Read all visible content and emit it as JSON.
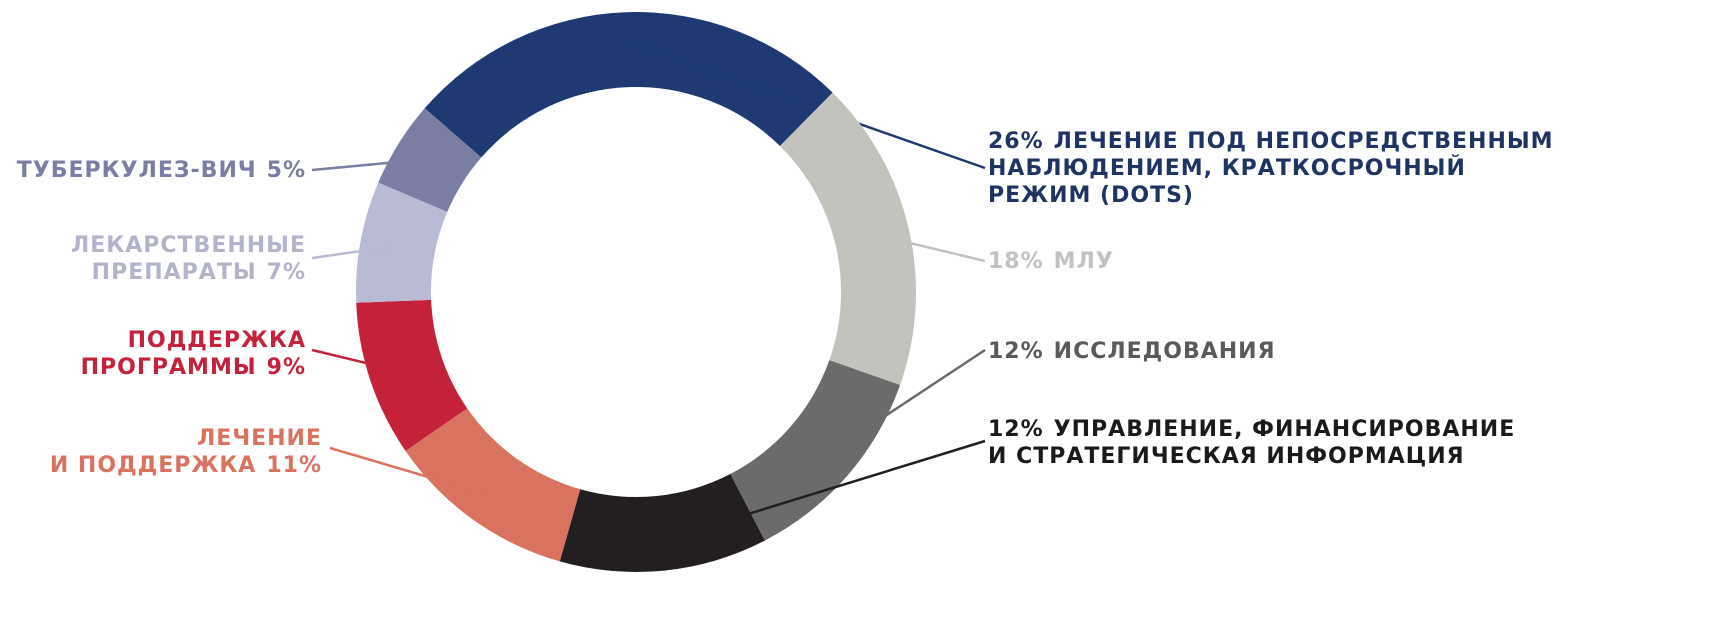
{
  "chart_data": {
    "type": "donut",
    "categories": [
      "ЛЕЧЕНИЕ ПОД НЕПОСРЕДСТВЕННЫМ\nНАБЛЮДЕНИЕМ, КРАТКОСРОЧНЫЙ\nРЕЖИМ (DOTS)",
      "МЛУ",
      "ИССЛЕДОВАНИЯ",
      "УПРАВЛЕНИЕ, ФИНАНСИРОВАНИЕ\nИ СТРАТЕГИЧЕСКАЯ ИНФОРМАЦИЯ",
      "ЛЕЧЕНИЕ\nИ ПОДДЕРЖКА",
      "ПОДДЕРЖКА\nПРОГРАММЫ",
      "ЛЕКАРСТВЕННЫЕ\nПРЕПАРАТЫ",
      "ТУБЕРКУЛЕЗ-ВИЧ"
    ],
    "values": [
      26,
      18,
      12,
      12,
      11,
      9,
      7,
      5
    ],
    "value_labels": [
      "26%",
      "18%",
      "12%",
      "12%",
      "11%",
      "9%",
      "7%",
      "5%"
    ],
    "colors": [
      "#1f3a73",
      "#c3c3bd",
      "#6b6b6b",
      "#231f20",
      "#d9725f",
      "#c4223a",
      "#b9bad3",
      "#7b7ea3"
    ],
    "label_colors": [
      "#1f3464",
      "#c2c2c2",
      "#5a5a5a",
      "#1a1a1a",
      "#d9725f",
      "#c4223a",
      "#b3b4cc",
      "#7b7ea3"
    ]
  }
}
